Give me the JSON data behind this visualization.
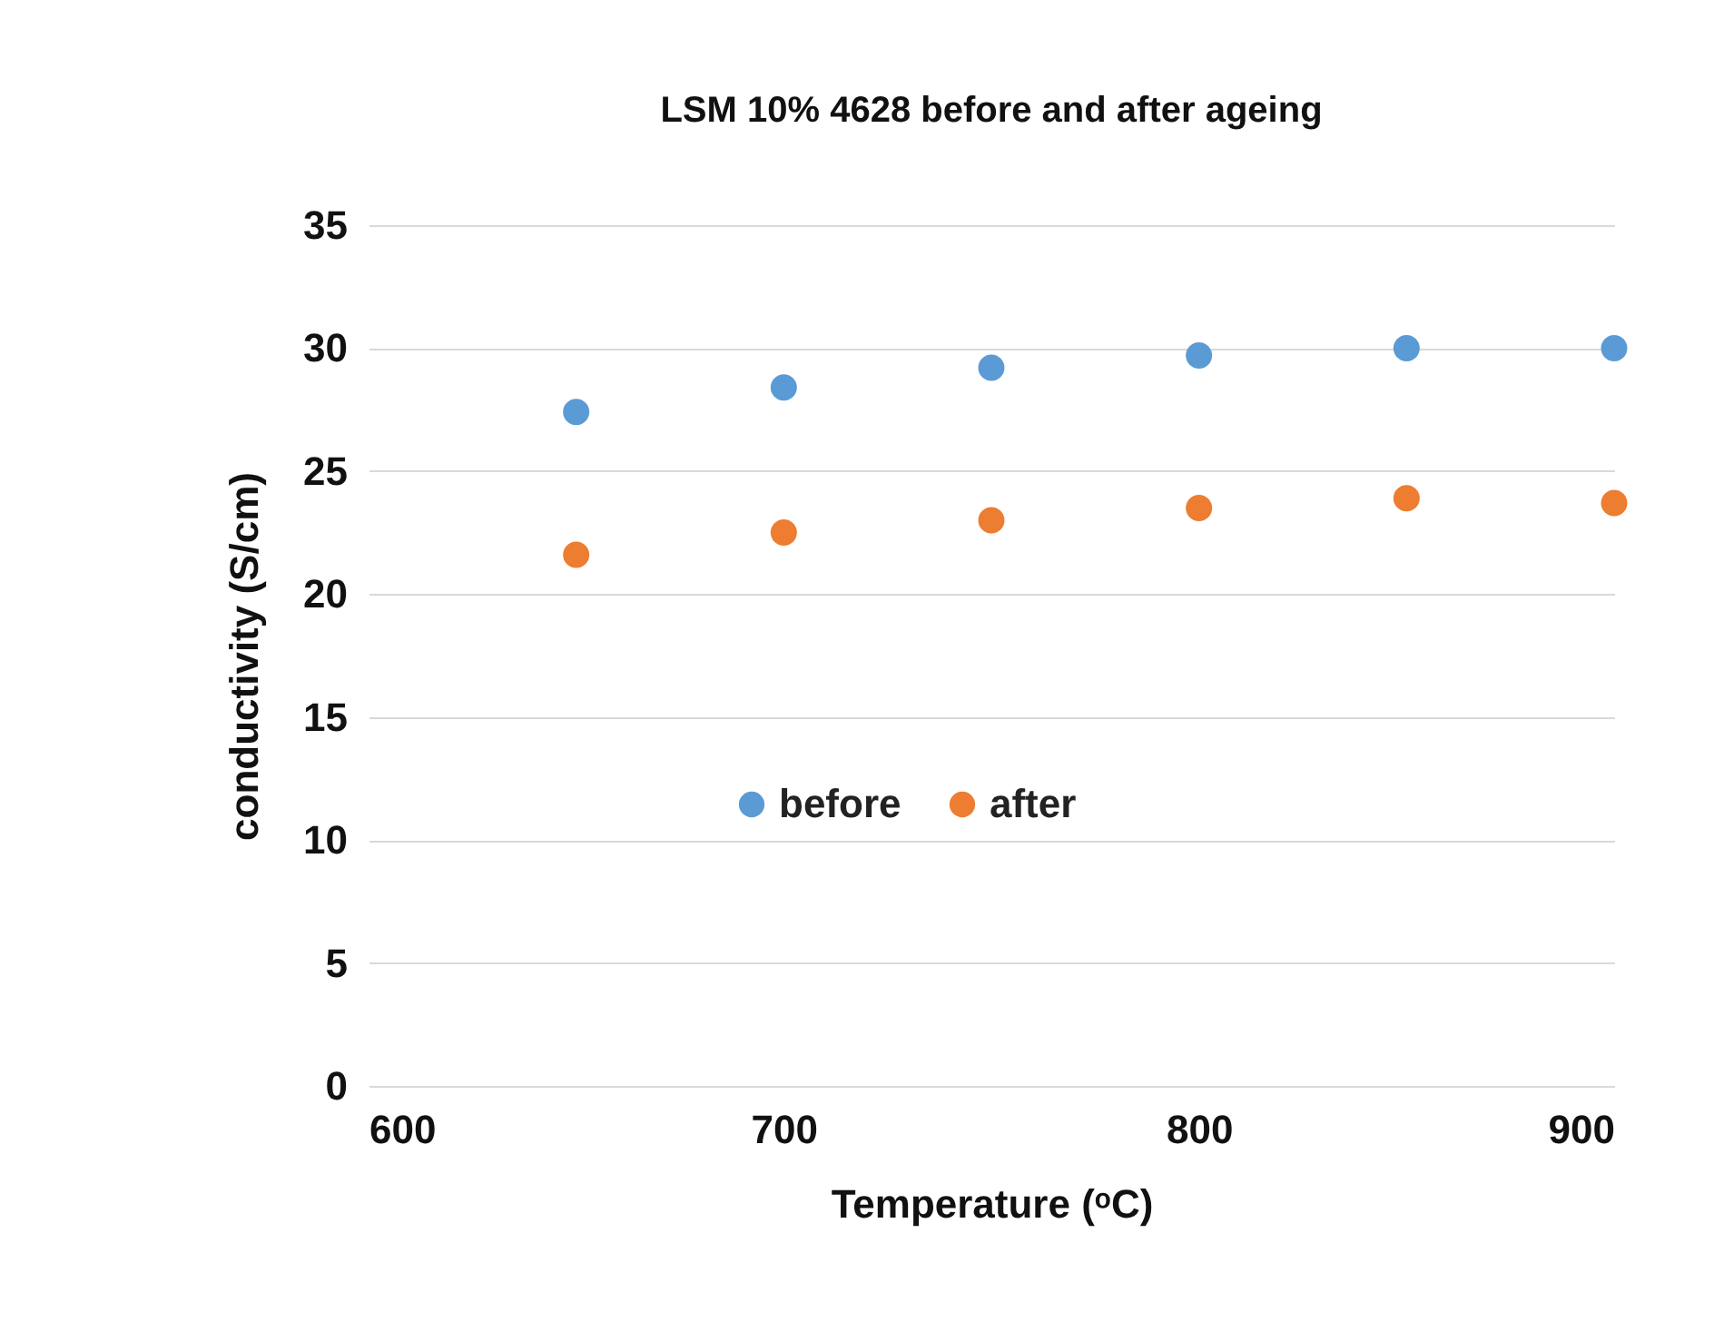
{
  "chart_data": {
    "type": "scatter",
    "title": "LSM 10% 4628 before and after ageing",
    "xlabel": "Temperature (ᵒC)",
    "ylabel": "conductivity (S/cm)",
    "x": [
      650,
      700,
      750,
      800,
      850,
      900
    ],
    "series": [
      {
        "name": "before",
        "color": "#5b9bd5",
        "values": [
          27.4,
          28.4,
          29.2,
          29.7,
          30.0,
          30.0
        ]
      },
      {
        "name": "after",
        "color": "#ed7d31",
        "values": [
          21.6,
          22.5,
          23.0,
          23.5,
          23.9,
          23.7
        ]
      }
    ],
    "xlim": [
      600,
      900
    ],
    "xticks": [
      600,
      700,
      800,
      900
    ],
    "ylim": [
      0,
      35
    ],
    "yticks": [
      0,
      5,
      10,
      15,
      20,
      25,
      30,
      35
    ],
    "grid": "y",
    "legend": "center",
    "marker": "circle"
  }
}
